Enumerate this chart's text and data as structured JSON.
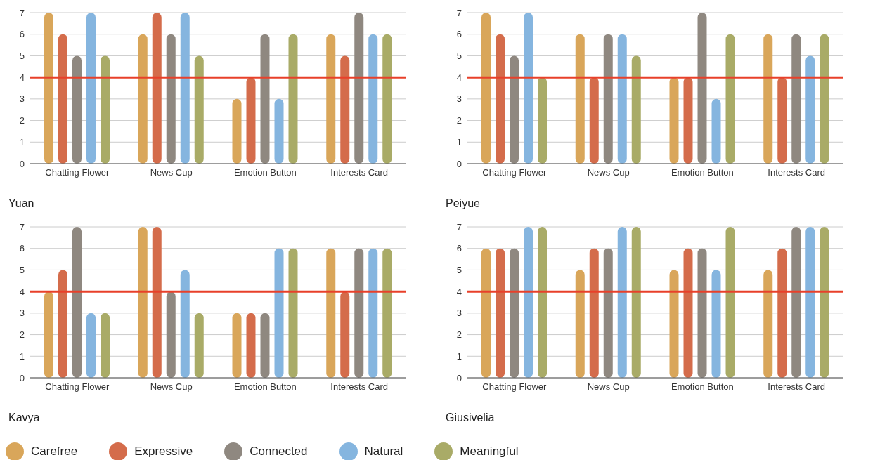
{
  "chart_data": [
    {
      "type": "bar",
      "title": "Yuan",
      "categories": [
        "Chatting Flower",
        "News Cup",
        "Emotion Button",
        "Interests Card"
      ],
      "ylim": [
        0,
        7
      ],
      "yticks": [
        0,
        1,
        2,
        3,
        4,
        5,
        6,
        7
      ],
      "grid": "y",
      "legend": "bottom",
      "ref_lines": [
        {
          "axis": "y",
          "value": 4,
          "color": "#e8402a"
        }
      ],
      "series": [
        {
          "name": "Carefree",
          "color": "#d9a65a",
          "values": [
            7,
            6,
            3,
            6
          ]
        },
        {
          "name": "Expressive",
          "color": "#d46c4b",
          "values": [
            6,
            7,
            4,
            5
          ]
        },
        {
          "name": "Connected",
          "color": "#8f8880",
          "values": [
            5,
            6,
            6,
            7
          ]
        },
        {
          "name": "Natural",
          "color": "#85b5df",
          "values": [
            7,
            7,
            3,
            6
          ]
        },
        {
          "name": "Meaningful",
          "color": "#a9ab67",
          "values": [
            5,
            5,
            6,
            6
          ]
        }
      ]
    },
    {
      "type": "bar",
      "title": "Peiyue",
      "categories": [
        "Chatting Flower",
        "News Cup",
        "Emotion Button",
        "Interests Card"
      ],
      "ylim": [
        0,
        7
      ],
      "yticks": [
        0,
        1,
        2,
        3,
        4,
        5,
        6,
        7
      ],
      "grid": "y",
      "ref_lines": [
        {
          "axis": "y",
          "value": 4,
          "color": "#e8402a"
        }
      ],
      "series": [
        {
          "color": "#d9a65a",
          "values": [
            7,
            6,
            4,
            6
          ]
        },
        {
          "color": "#d46c4b",
          "values": [
            6,
            4,
            4,
            4
          ]
        },
        {
          "color": "#8f8880",
          "values": [
            5,
            6,
            7,
            6
          ]
        },
        {
          "color": "#85b5df",
          "values": [
            7,
            6,
            3,
            5
          ]
        },
        {
          "color": "#a9ab67",
          "values": [
            4,
            5,
            6,
            6
          ]
        }
      ]
    },
    {
      "type": "bar",
      "title": "Kavya",
      "categories": [
        "Chatting Flower",
        "News Cup",
        "Emotion Button",
        "Interests Card"
      ],
      "ylim": [
        0,
        7
      ],
      "yticks": [
        0,
        1,
        2,
        3,
        4,
        5,
        6,
        7
      ],
      "grid": "y",
      "ref_lines": [
        {
          "axis": "y",
          "value": 4,
          "color": "#e8402a"
        }
      ],
      "series": [
        {
          "color": "#d9a65a",
          "values": [
            4,
            7,
            3,
            6
          ]
        },
        {
          "color": "#d46c4b",
          "values": [
            5,
            7,
            3,
            4
          ]
        },
        {
          "color": "#8f8880",
          "values": [
            7,
            4,
            3,
            6
          ]
        },
        {
          "color": "#85b5df",
          "values": [
            3,
            5,
            6,
            6
          ]
        },
        {
          "color": "#a9ab67",
          "values": [
            3,
            3,
            6,
            6
          ]
        }
      ]
    },
    {
      "type": "bar",
      "title": "Giusivelia",
      "categories": [
        "Chatting Flower",
        "News Cup",
        "Emotion Button",
        "Interests Card"
      ],
      "ylim": [
        0,
        7
      ],
      "yticks": [
        0,
        1,
        2,
        3,
        4,
        5,
        6,
        7
      ],
      "grid": "y",
      "ref_lines": [
        {
          "axis": "y",
          "value": 4,
          "color": "#e8402a"
        }
      ],
      "series": [
        {
          "color": "#d9a65a",
          "values": [
            6,
            5,
            5,
            5
          ]
        },
        {
          "color": "#d46c4b",
          "values": [
            6,
            6,
            6,
            6
          ]
        },
        {
          "color": "#8f8880",
          "values": [
            6,
            6,
            6,
            7
          ]
        },
        {
          "color": "#85b5df",
          "values": [
            7,
            7,
            5,
            7
          ]
        },
        {
          "color": "#a9ab67",
          "values": [
            7,
            7,
            7,
            7
          ]
        }
      ]
    }
  ]
}
